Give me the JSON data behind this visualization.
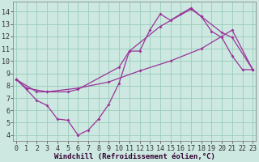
{
  "background_color": "#cce8e0",
  "grid_color": "#99ccbb",
  "line_color": "#993399",
  "marker": "D",
  "markersize": 2,
  "linewidth": 0.9,
  "xlim": [
    -0.3,
    23.3
  ],
  "ylim": [
    3.5,
    14.8
  ],
  "xticks": [
    0,
    1,
    2,
    3,
    4,
    5,
    6,
    7,
    8,
    9,
    10,
    11,
    12,
    13,
    14,
    15,
    16,
    17,
    18,
    19,
    20,
    21,
    22,
    23
  ],
  "yticks": [
    4,
    5,
    6,
    7,
    8,
    9,
    10,
    11,
    12,
    13,
    14
  ],
  "xlabel": "Windchill (Refroidissement éolien,°C)",
  "xlabel_fontsize": 6.5,
  "tick_fontsize": 6,
  "series": [
    {
      "x": [
        0,
        1,
        2,
        3,
        4,
        5,
        6,
        7,
        8,
        9,
        10,
        11,
        12,
        13,
        14,
        15,
        16,
        17,
        18,
        19,
        20,
        21,
        22,
        23
      ],
      "y": [
        8.5,
        7.7,
        6.8,
        6.4,
        5.3,
        5.2,
        4.0,
        4.4,
        5.3,
        6.5,
        8.2,
        10.8,
        10.8,
        12.5,
        13.8,
        13.3,
        13.8,
        14.3,
        13.6,
        12.4,
        11.9,
        10.4,
        9.3,
        9.3
      ]
    },
    {
      "x": [
        0,
        2,
        3,
        5,
        6,
        10,
        11,
        14,
        17,
        18,
        20,
        21,
        23
      ],
      "y": [
        8.5,
        7.5,
        7.5,
        7.5,
        7.7,
        9.5,
        10.8,
        12.8,
        14.2,
        13.6,
        12.3,
        11.9,
        9.3
      ]
    },
    {
      "x": [
        0,
        1,
        3,
        6,
        9,
        12,
        15,
        18,
        21,
        23
      ],
      "y": [
        8.5,
        7.8,
        7.5,
        7.8,
        8.3,
        9.2,
        10.0,
        11.0,
        12.5,
        9.3
      ]
    }
  ]
}
